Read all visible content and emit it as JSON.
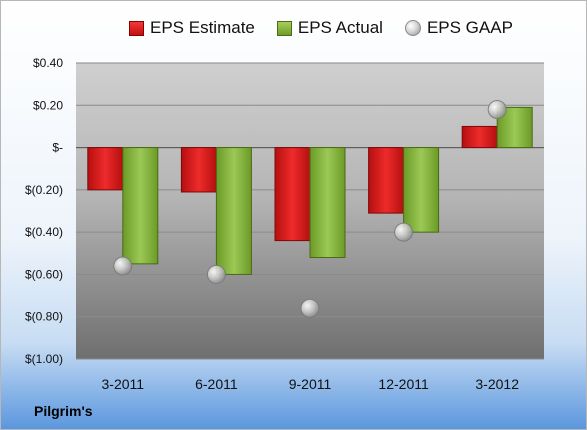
{
  "company": "Pilgrim's",
  "legend": {
    "estimate": "EPS Estimate",
    "actual": "EPS Actual",
    "gaap": "EPS GAAP"
  },
  "colors": {
    "estimate": "#d81f1f",
    "actual": "#8cb743",
    "gaap": "#bdbdbd"
  },
  "chart_data": {
    "type": "bar",
    "categories": [
      "3-2011",
      "6-2011",
      "9-2011",
      "12-2011",
      "3-2012"
    ],
    "series": [
      {
        "name": "EPS Estimate",
        "type": "bar",
        "values": [
          -0.2,
          -0.21,
          -0.44,
          -0.31,
          0.1
        ]
      },
      {
        "name": "EPS Actual",
        "type": "bar",
        "values": [
          -0.55,
          -0.6,
          -0.52,
          -0.4,
          0.19
        ]
      },
      {
        "name": "EPS GAAP",
        "type": "scatter",
        "values": [
          -0.56,
          -0.6,
          -0.76,
          -0.4,
          0.18
        ]
      }
    ],
    "ylim": [
      -1.0,
      0.4
    ],
    "yticks": [
      0.4,
      0.2,
      0.0,
      -0.2,
      -0.4,
      -0.6,
      -0.8,
      -1.0
    ],
    "ytick_labels": [
      "$0.40",
      "$0.20",
      "$-",
      "$(0.20)",
      "$(0.40)",
      "$(0.60)",
      "$(0.80)",
      "$(1.00)"
    ],
    "grid": true,
    "legend_position": "top"
  }
}
